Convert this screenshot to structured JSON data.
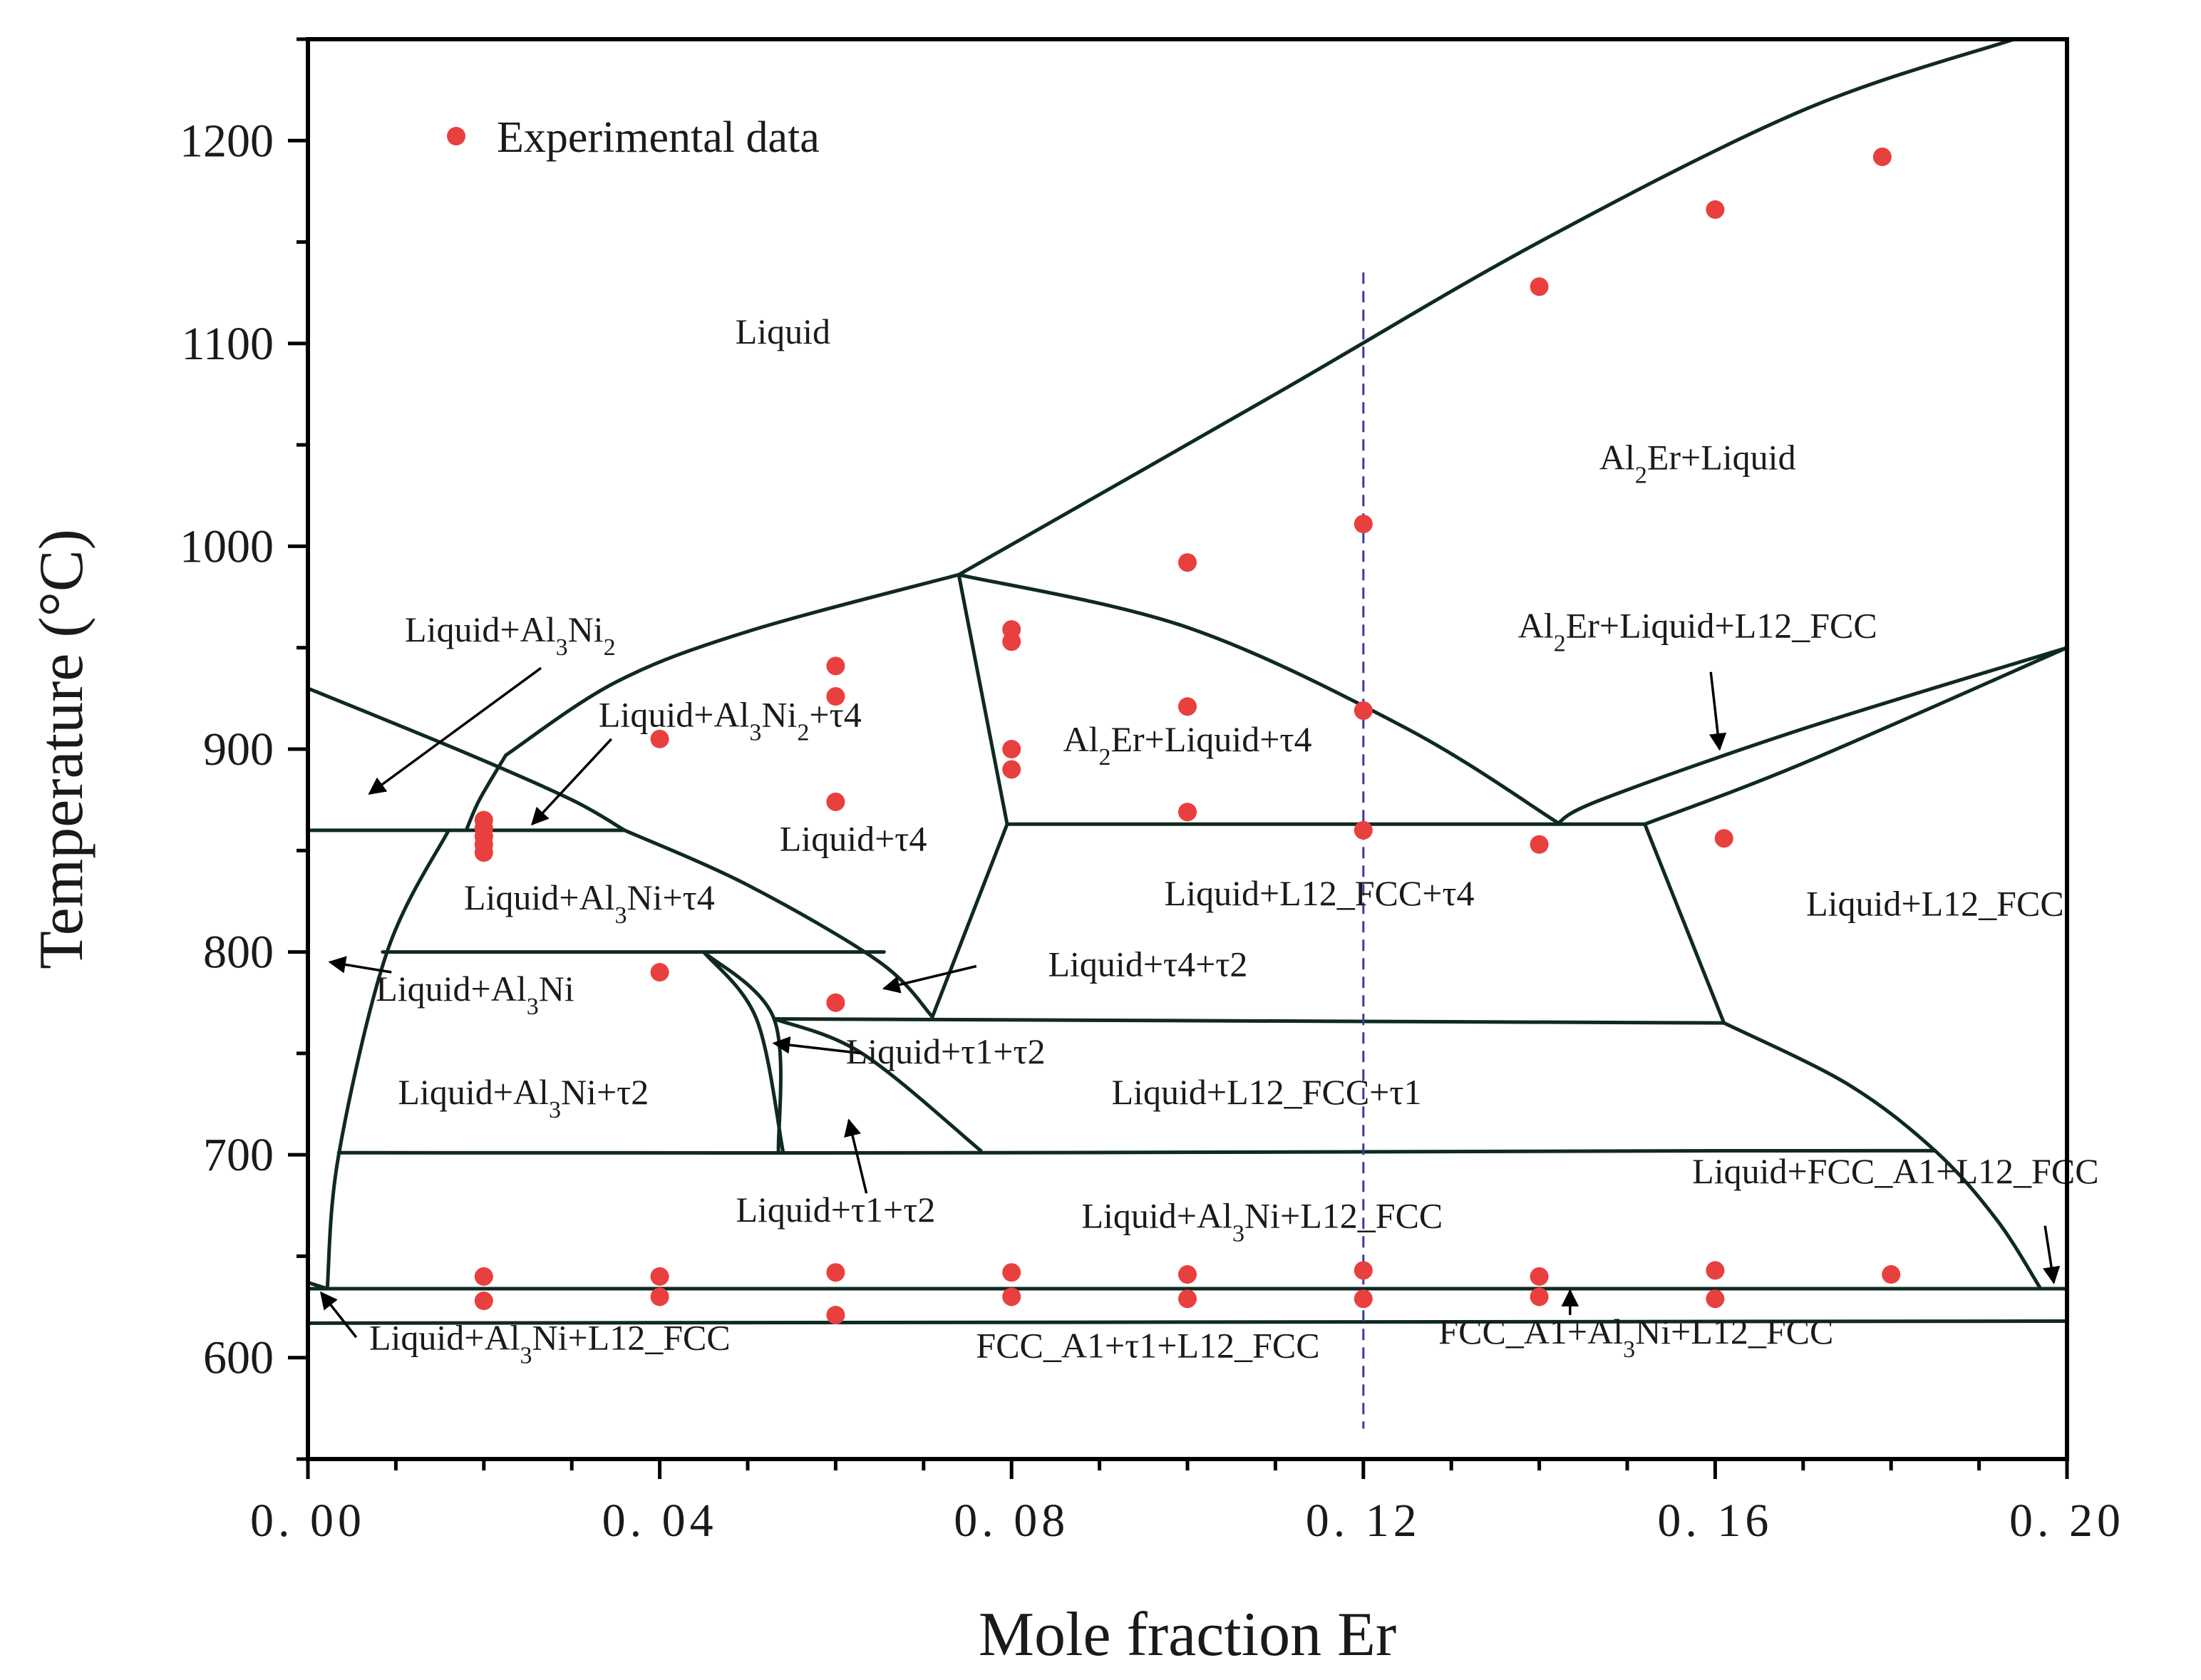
{
  "chart_data": {
    "type": "scatter",
    "title": "",
    "xlabel": "Mole fraction Er",
    "ylabel": "Temperature (°C)",
    "xlim": [
      0.0,
      0.2
    ],
    "ylim": [
      550,
      1250
    ],
    "grid": false,
    "legend_position": "top-left",
    "x_ticks": [
      "0.00",
      "0.04",
      "0.08",
      "0.12",
      "0.16",
      "0.20"
    ],
    "y_ticks": [
      "600",
      "700",
      "800",
      "900",
      "1000",
      "1100",
      "1200"
    ],
    "minor_x_step": 0.01,
    "minor_y_step": 50,
    "accent_color": "#e8403e",
    "marker_x": 0.12,
    "series": [
      {
        "name": "Experimental data",
        "color": "#e8403e",
        "points": [
          [
            0.02,
            865
          ],
          [
            0.02,
            861
          ],
          [
            0.02,
            857
          ],
          [
            0.02,
            853
          ],
          [
            0.02,
            849
          ],
          [
            0.02,
            640
          ],
          [
            0.02,
            628
          ],
          [
            0.04,
            905
          ],
          [
            0.04,
            790
          ],
          [
            0.04,
            640
          ],
          [
            0.04,
            630
          ],
          [
            0.06,
            941
          ],
          [
            0.06,
            926
          ],
          [
            0.06,
            874
          ],
          [
            0.06,
            775
          ],
          [
            0.06,
            642
          ],
          [
            0.06,
            621
          ],
          [
            0.08,
            959
          ],
          [
            0.08,
            953
          ],
          [
            0.08,
            900
          ],
          [
            0.08,
            890
          ],
          [
            0.08,
            642
          ],
          [
            0.08,
            630
          ],
          [
            0.1,
            992
          ],
          [
            0.1,
            921
          ],
          [
            0.1,
            869
          ],
          [
            0.1,
            641
          ],
          [
            0.1,
            629
          ],
          [
            0.12,
            1011
          ],
          [
            0.12,
            919
          ],
          [
            0.12,
            860
          ],
          [
            0.12,
            643
          ],
          [
            0.12,
            629
          ],
          [
            0.14,
            1128
          ],
          [
            0.14,
            853
          ],
          [
            0.14,
            640
          ],
          [
            0.14,
            630
          ],
          [
            0.16,
            1166
          ],
          [
            0.16,
            643
          ],
          [
            0.16,
            629
          ],
          [
            0.161,
            856
          ],
          [
            0.179,
            1192
          ],
          [
            0.18,
            641
          ]
        ]
      }
    ],
    "phase_boundaries": [
      {
        "name": "liquidus-al2er",
        "points": [
          [
            0.074,
            986
          ],
          [
            0.11,
            1075
          ],
          [
            0.14,
            1150
          ],
          [
            0.17,
            1215
          ],
          [
            0.194,
            1250
          ]
        ]
      },
      {
        "name": "liquidus-tau4",
        "points": [
          [
            0.0225,
            897
          ],
          [
            0.035,
            933
          ],
          [
            0.05,
            958
          ],
          [
            0.074,
            986
          ]
        ]
      },
      {
        "name": "liquidus-al3ni2-upper",
        "points": [
          [
            0.018,
            860
          ],
          [
            0.0195,
            875
          ],
          [
            0.0225,
            897
          ]
        ]
      },
      {
        "name": "liquidus-al3ni2",
        "points": [
          [
            0.0,
            930
          ],
          [
            0.018,
            898
          ],
          [
            0.03,
            875
          ],
          [
            0.036,
            860
          ]
        ]
      },
      {
        "name": "isotherm-860-left",
        "points": [
          [
            0.0,
            860
          ],
          [
            0.036,
            860
          ]
        ]
      },
      {
        "name": "boundary-tau4-al2er",
        "points": [
          [
            0.074,
            986
          ],
          [
            0.0795,
            863
          ]
        ]
      },
      {
        "name": "boundary-al2er-liquid-tau4",
        "points": [
          [
            0.074,
            986
          ],
          [
            0.1,
            960
          ],
          [
            0.125,
            910
          ],
          [
            0.142,
            864
          ]
        ]
      },
      {
        "name": "isotherm-863",
        "points": [
          [
            0.0795,
            863
          ],
          [
            0.152,
            863
          ]
        ]
      },
      {
        "name": "boundary-l12-eutectic-1",
        "points": [
          [
            0.142,
            863
          ],
          [
            0.147,
            875
          ],
          [
            0.17,
            910
          ],
          [
            0.2,
            950
          ]
        ]
      },
      {
        "name": "boundary-l12-eutectic-2",
        "points": [
          [
            0.152,
            863
          ],
          [
            0.17,
            893
          ],
          [
            0.2,
            950
          ]
        ]
      },
      {
        "name": "boundary-al3ni-left",
        "points": [
          [
            0.016,
            860
          ],
          [
            0.009,
            800
          ],
          [
            0.0035,
            700
          ],
          [
            0.0022,
            634
          ]
        ]
      },
      {
        "name": "boundary-al3ni-tau4",
        "points": [
          [
            0.036,
            860
          ],
          [
            0.05,
            833
          ],
          [
            0.065,
            795
          ],
          [
            0.071,
            768
          ]
        ]
      },
      {
        "name": "boundary-tau4-l12",
        "points": [
          [
            0.0795,
            863
          ],
          [
            0.071,
            768
          ]
        ]
      },
      {
        "name": "isotherm-800",
        "points": [
          [
            0.0085,
            800
          ],
          [
            0.0655,
            800
          ]
        ]
      },
      {
        "name": "isotherm-767",
        "points": [
          [
            0.053,
            767
          ],
          [
            0.161,
            765
          ]
        ]
      },
      {
        "name": "boundary-l12-right",
        "points": [
          [
            0.152,
            863
          ],
          [
            0.161,
            765
          ]
        ]
      },
      {
        "name": "boundary-fcc-a1",
        "points": [
          [
            0.161,
            765
          ],
          [
            0.175,
            735
          ],
          [
            0.185,
            702
          ],
          [
            0.192,
            668
          ],
          [
            0.197,
            634
          ]
        ]
      },
      {
        "name": "boundary-tau1-tau2-a",
        "points": [
          [
            0.045,
            800
          ],
          [
            0.051,
            767
          ],
          [
            0.054,
            702
          ]
        ]
      },
      {
        "name": "boundary-tau1-tau2-b",
        "points": [
          [
            0.045,
            800
          ],
          [
            0.053,
            767
          ],
          [
            0.0535,
            702
          ]
        ]
      },
      {
        "name": "boundary-tau1-right",
        "points": [
          [
            0.053,
            767
          ],
          [
            0.063,
            750
          ],
          [
            0.0765,
            702
          ]
        ]
      },
      {
        "name": "isotherm-701",
        "points": [
          [
            0.0035,
            701
          ],
          [
            0.0765,
            701
          ],
          [
            0.161,
            702
          ],
          [
            0.185,
            702
          ]
        ]
      },
      {
        "name": "isotherm-634",
        "points": [
          [
            0.0,
            634
          ],
          [
            0.2,
            634
          ]
        ]
      },
      {
        "name": "isotherm-617",
        "points": [
          [
            0.0,
            617
          ],
          [
            0.2,
            618
          ]
        ]
      },
      {
        "name": "stub-eutectic-left",
        "points": [
          [
            0.0,
            637
          ],
          [
            0.0022,
            634
          ]
        ]
      }
    ],
    "region_labels": [
      {
        "text": "Liquid",
        "x": 0.054,
        "y": 1100
      },
      {
        "text": "Al₂Er+Liquid",
        "x": 0.158,
        "y": 1038
      },
      {
        "text": "Liquid+Al₃Ni₂",
        "x": 0.023,
        "y": 953
      },
      {
        "text": "Liquid+Al₃Ni₂+τ4",
        "x": 0.048,
        "y": 911
      },
      {
        "text": "Al₂Er+Liquid+τ4",
        "x": 0.1,
        "y": 899
      },
      {
        "text": "Al₂Er+Liquid+L12_FCC",
        "x": 0.158,
        "y": 955
      },
      {
        "text": "Liquid+τ4",
        "x": 0.062,
        "y": 850
      },
      {
        "text": "Liquid+L12_FCC+τ4",
        "x": 0.115,
        "y": 823
      },
      {
        "text": "Liquid+L12_FCC",
        "x": 0.185,
        "y": 818
      },
      {
        "text": "Liquid+Al₃Ni+τ4",
        "x": 0.032,
        "y": 821
      },
      {
        "text": "Liquid+τ4+τ2",
        "x": 0.0955,
        "y": 788
      },
      {
        "text": "Liquid+Al₃Ni",
        "x": 0.019,
        "y": 776
      },
      {
        "text": "Liquid+τ1+τ2",
        "x": 0.0725,
        "y": 745
      },
      {
        "text": "Liquid+L12_FCC+τ1",
        "x": 0.109,
        "y": 725
      },
      {
        "text": "Liquid+Al₃Ni+τ2",
        "x": 0.0245,
        "y": 725
      },
      {
        "text": "Liquid+FCC_A1+L12_FCC",
        "x": 0.1805,
        "y": 686
      },
      {
        "text": "Liquid+τ1+τ2",
        "x": 0.06,
        "y": 667
      },
      {
        "text": "Liquid+Al₃Ni+L12_FCC",
        "x": 0.1085,
        "y": 664
      },
      {
        "text": "Liquid+Al₃Ni+L12_FCC",
        "x": 0.0275,
        "y": 604
      },
      {
        "text": "FCC_A1+τ1+L12_FCC",
        "x": 0.0955,
        "y": 600
      },
      {
        "text": "FCC_A1+Al₃Ni+L12_FCC",
        "x": 0.151,
        "y": 607
      }
    ],
    "arrows": [
      {
        "from": [
          0.0265,
          940
        ],
        "to": [
          0.007,
          878
        ]
      },
      {
        "from": [
          0.0345,
          905
        ],
        "to": [
          0.0255,
          863
        ]
      },
      {
        "from": [
          0.0095,
          790
        ],
        "to": [
          0.0025,
          795
        ]
      },
      {
        "from": [
          0.076,
          793
        ],
        "to": [
          0.0655,
          782
        ]
      },
      {
        "from": [
          0.063,
          750
        ],
        "to": [
          0.053,
          755
        ]
      },
      {
        "from": [
          0.0635,
          681
        ],
        "to": [
          0.0615,
          717
        ]
      },
      {
        "from": [
          0.1595,
          938
        ],
        "to": [
          0.1605,
          900
        ]
      },
      {
        "from": [
          0.1975,
          665
        ],
        "to": [
          0.1985,
          637
        ]
      },
      {
        "from": [
          0.0055,
          610
        ],
        "to": [
          0.0015,
          632
        ]
      },
      {
        "from": [
          0.1435,
          621
        ],
        "to": [
          0.1435,
          633
        ]
      }
    ]
  }
}
